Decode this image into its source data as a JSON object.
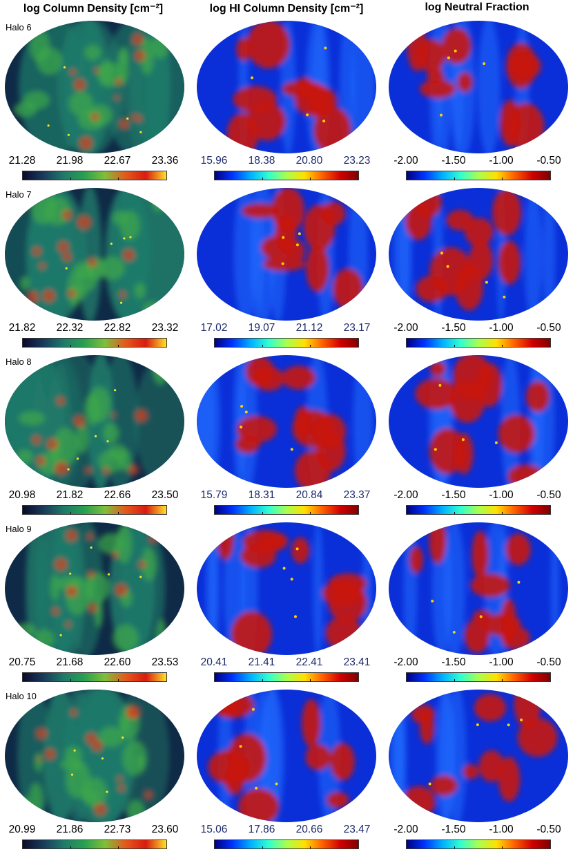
{
  "headers": [
    "log Column Density [cm⁻²]",
    "log HI Column Density [cm⁻²]",
    "log Neutral Fraction"
  ],
  "colors": {
    "column_density_cmap": [
      "#0a0a2a",
      "#1a3a5a",
      "#1f7a6a",
      "#28a050",
      "#7fbf3a",
      "#e35a1c",
      "#d81c10",
      "#ffe22a"
    ],
    "hi_cmap": [
      "#000080",
      "#0033ff",
      "#00b0ff",
      "#30ffd0",
      "#a8ff50",
      "#ffe000",
      "#ff6000",
      "#d00000",
      "#800000"
    ]
  },
  "rows": [
    {
      "halo": "Halo 6",
      "cd_ticks": [
        "21.28",
        "21.98",
        "22.67",
        "23.36"
      ],
      "hi_ticks": [
        "15.96",
        "18.38",
        "20.80",
        "23.23"
      ],
      "nf_ticks": [
        "-2.00",
        "-1.50",
        "-1.00",
        "-0.50"
      ]
    },
    {
      "halo": "Halo 7",
      "cd_ticks": [
        "21.82",
        "22.32",
        "22.82",
        "23.32"
      ],
      "hi_ticks": [
        "17.02",
        "19.07",
        "21.12",
        "23.17"
      ],
      "nf_ticks": [
        "-2.00",
        "-1.50",
        "-1.00",
        "-0.50"
      ]
    },
    {
      "halo": "Halo 8",
      "cd_ticks": [
        "20.98",
        "21.82",
        "22.66",
        "23.50"
      ],
      "hi_ticks": [
        "15.79",
        "18.31",
        "20.84",
        "23.37"
      ],
      "nf_ticks": [
        "-2.00",
        "-1.50",
        "-1.00",
        "-0.50"
      ]
    },
    {
      "halo": "Halo 9",
      "cd_ticks": [
        "20.75",
        "21.68",
        "22.60",
        "23.53"
      ],
      "hi_ticks": [
        "20.41",
        "21.41",
        "22.41",
        "23.41"
      ],
      "nf_ticks": [
        "-2.00",
        "-1.50",
        "-1.00",
        "-0.50"
      ]
    },
    {
      "halo": "Halo 10",
      "cd_ticks": [
        "20.99",
        "21.86",
        "22.73",
        "23.60"
      ],
      "hi_ticks": [
        "15.06",
        "17.86",
        "20.66",
        "23.47"
      ],
      "nf_ticks": [
        "-2.00",
        "-1.50",
        "-1.00",
        "-0.50"
      ]
    }
  ]
}
